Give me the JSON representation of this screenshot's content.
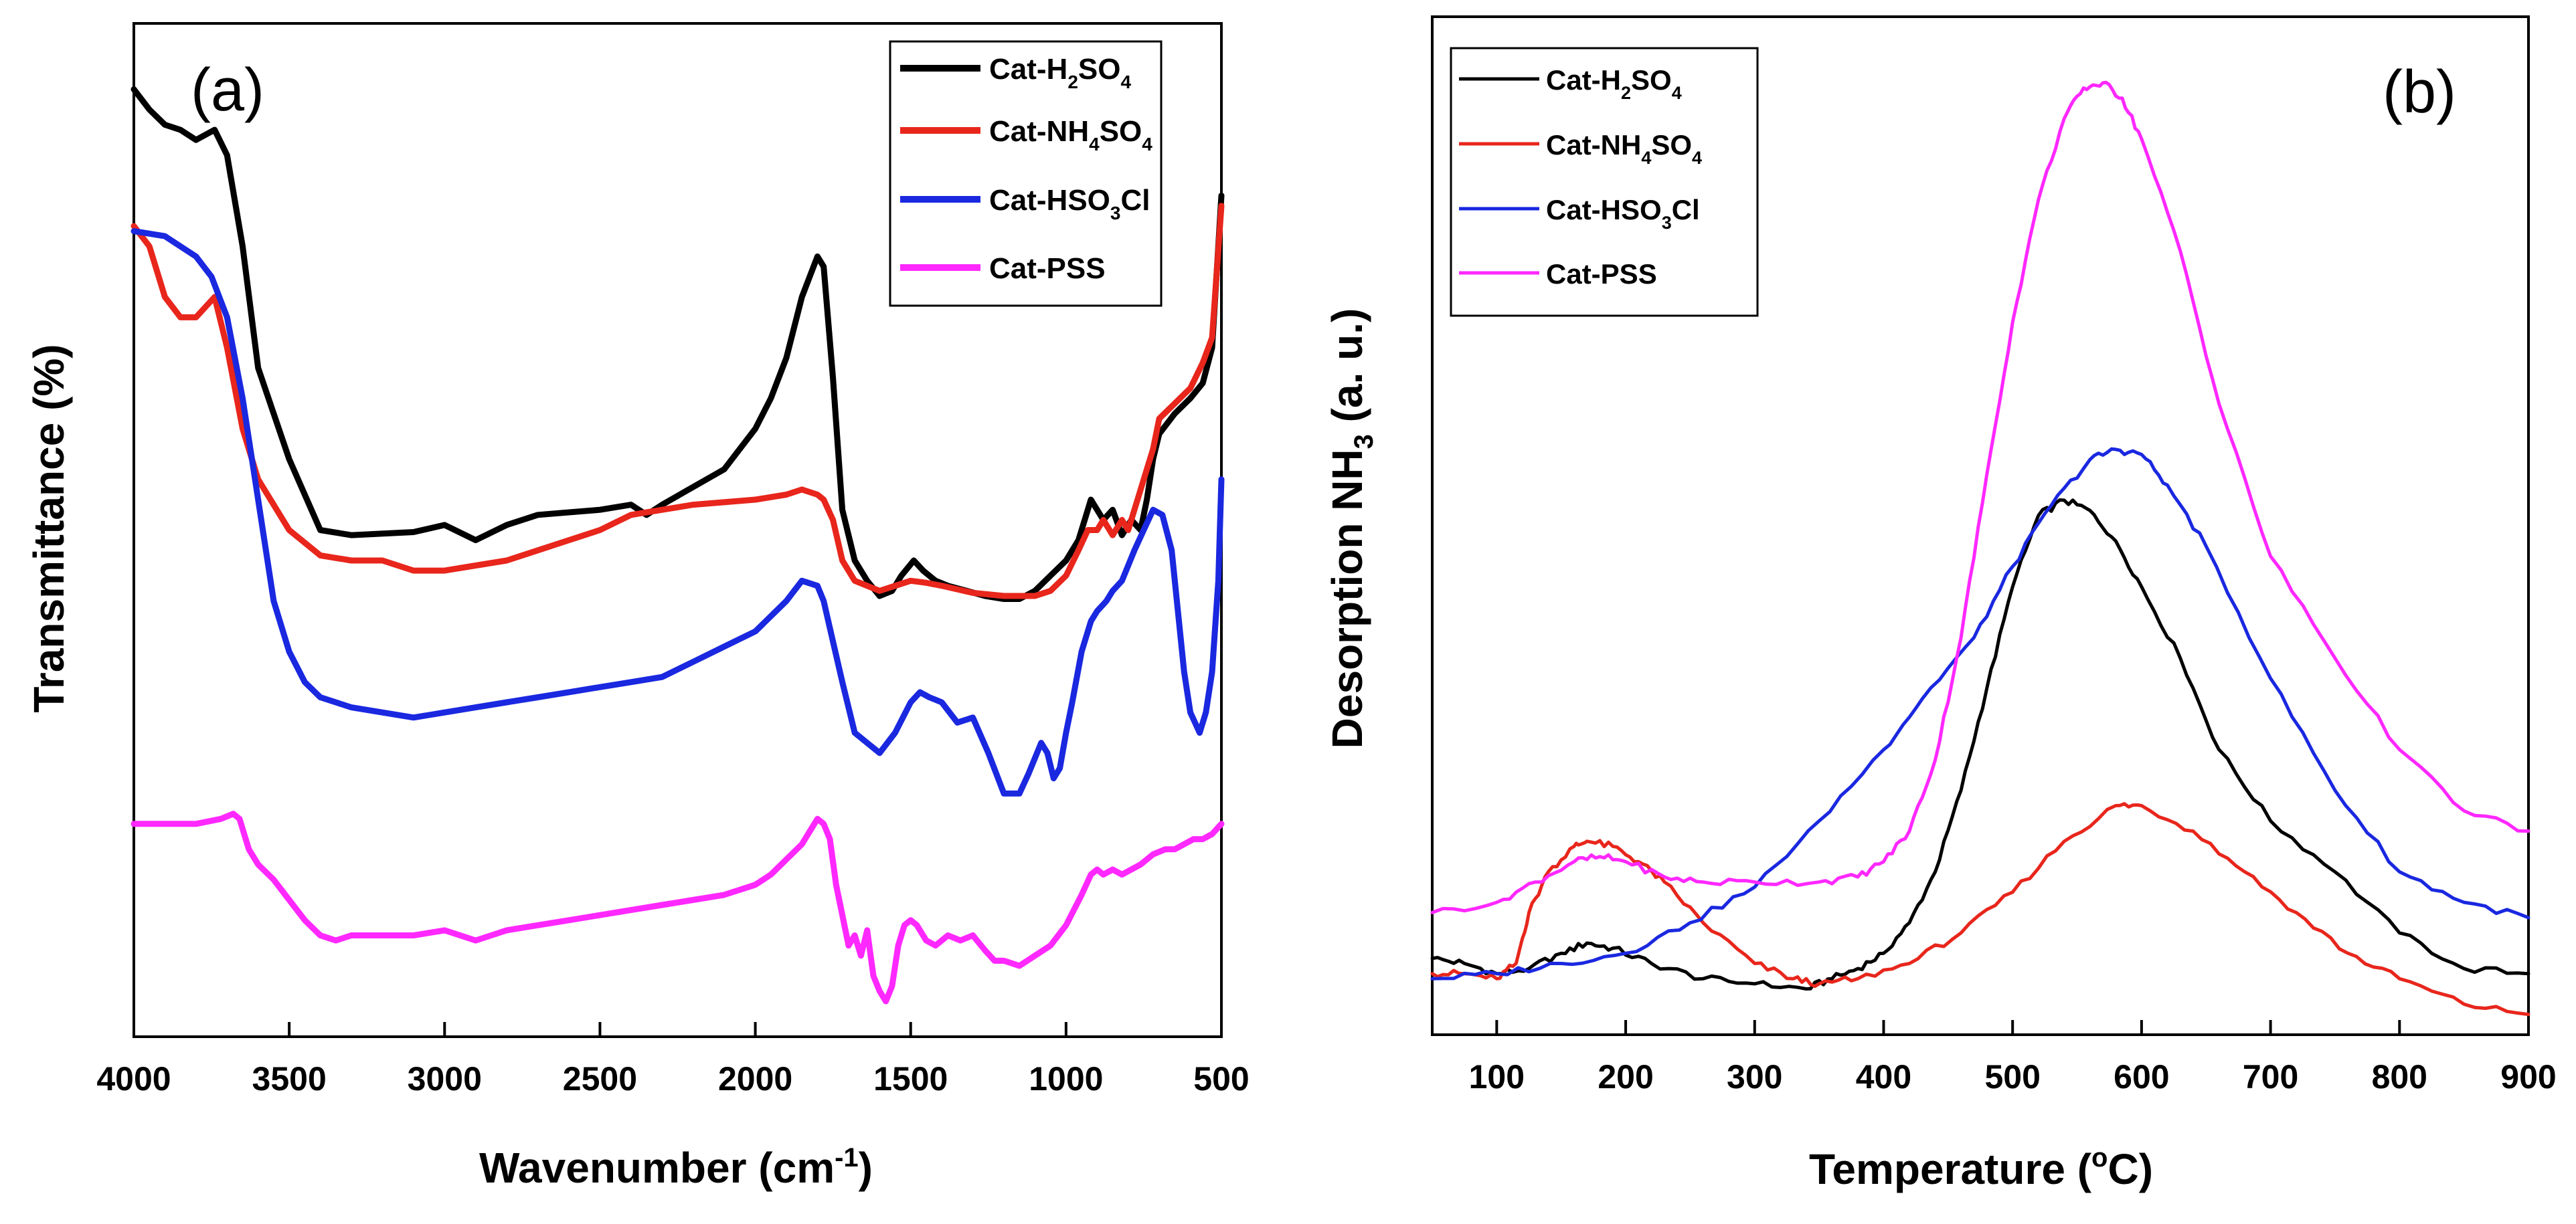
{
  "chart_data": [
    {
      "type": "line",
      "panel_label": "(a)",
      "xlabel": "Wavenumber (cm",
      "xlabel_sup": "-1",
      "xlabel_end": ")",
      "ylabel": "Transmittance (%)",
      "xlim": [
        4000,
        500
      ],
      "ylim": [
        0,
        100
      ],
      "xticks": [
        "4000",
        "3500",
        "3000",
        "2500",
        "2000",
        "1500",
        "1000",
        "500"
      ],
      "series": [
        {
          "name": "Cat-H2SO4",
          "label_parts": [
            "Cat-H",
            "2",
            "SO",
            "4"
          ],
          "color": "#000000",
          "x": [
            4000,
            3950,
            3900,
            3850,
            3800,
            3740,
            3700,
            3650,
            3600,
            3500,
            3400,
            3300,
            3100,
            3000,
            2900,
            2800,
            2700,
            2500,
            2400,
            2350,
            2300,
            2100,
            2000,
            1950,
            1900,
            1850,
            1800,
            1780,
            1750,
            1720,
            1680,
            1640,
            1600,
            1560,
            1530,
            1490,
            1460,
            1420,
            1380,
            1320,
            1260,
            1200,
            1150,
            1100,
            1050,
            1000,
            960,
            940,
            920,
            900,
            880,
            850,
            820,
            790,
            760,
            740,
            720,
            700,
            650,
            600,
            560,
            530,
            500
          ],
          "y": [
            93.5,
            91.5,
            90,
            89.5,
            88.5,
            89.5,
            87,
            78,
            66,
            57,
            50,
            49.5,
            49.8,
            50.5,
            49,
            50.5,
            51.5,
            52,
            52.5,
            51.5,
            52.5,
            56,
            60,
            63,
            67,
            73,
            77,
            76,
            65,
            52,
            47,
            45,
            43.5,
            44,
            45.5,
            47,
            46,
            45,
            44.5,
            44,
            43.5,
            43.2,
            43.2,
            44,
            45.5,
            47,
            49,
            51,
            53,
            52,
            51,
            52,
            49.5,
            51,
            50,
            53,
            57,
            59.5,
            61.5,
            63,
            64.5,
            68,
            83
          ]
        },
        {
          "name": "Cat-NH4SO4",
          "label_parts": [
            "Cat-NH",
            "4",
            "SO",
            "4"
          ],
          "color": "#e8261c",
          "x": [
            4000,
            3950,
            3900,
            3850,
            3800,
            3740,
            3700,
            3650,
            3600,
            3500,
            3400,
            3300,
            3200,
            3100,
            3000,
            2900,
            2800,
            2700,
            2600,
            2500,
            2400,
            2300,
            2200,
            2000,
            1900,
            1850,
            1800,
            1780,
            1750,
            1720,
            1680,
            1640,
            1600,
            1550,
            1500,
            1450,
            1400,
            1300,
            1200,
            1100,
            1050,
            1000,
            960,
            930,
            900,
            880,
            850,
            820,
            800,
            780,
            760,
            740,
            720,
            700,
            650,
            600,
            560,
            530,
            500
          ],
          "y": [
            80,
            78,
            73,
            71,
            71,
            73,
            68,
            60,
            55,
            50,
            47.5,
            47,
            47,
            46,
            46,
            46.5,
            47,
            48,
            49,
            50,
            51.5,
            52,
            52.5,
            53,
            53.5,
            54,
            53.5,
            53,
            51,
            47,
            45,
            44.5,
            44,
            44.5,
            45,
            44.8,
            44.5,
            43.8,
            43.5,
            43.5,
            44,
            45.5,
            48,
            50,
            50,
            51,
            49.5,
            51,
            50,
            52,
            54,
            56,
            58,
            61,
            62.5,
            64,
            66.5,
            69,
            82
          ]
        },
        {
          "name": "Cat-HSO3Cl",
          "label_parts": [
            "Cat-HSO",
            "3",
            "Cl"
          ],
          "color": "#1a28e0",
          "x": [
            4000,
            3900,
            3800,
            3750,
            3700,
            3650,
            3600,
            3550,
            3500,
            3450,
            3400,
            3300,
            3200,
            3100,
            3000,
            2900,
            2800,
            2700,
            2600,
            2500,
            2400,
            2300,
            2200,
            2100,
            2000,
            1900,
            1850,
            1800,
            1780,
            1750,
            1720,
            1680,
            1640,
            1600,
            1550,
            1500,
            1470,
            1440,
            1400,
            1350,
            1300,
            1250,
            1200,
            1150,
            1120,
            1080,
            1060,
            1040,
            1020,
            1000,
            980,
            950,
            920,
            900,
            870,
            850,
            820,
            780,
            750,
            720,
            690,
            660,
            640,
            620,
            600,
            570,
            550,
            530,
            510,
            500
          ],
          "y": [
            79.5,
            79,
            77,
            75,
            71,
            63,
            53,
            43,
            38,
            35,
            33.5,
            32.5,
            32,
            31.5,
            32,
            32.5,
            33,
            33.5,
            34,
            34.5,
            35,
            35.5,
            37,
            38.5,
            40,
            43,
            45,
            44.5,
            43,
            39,
            35,
            30,
            29,
            28,
            30,
            33,
            34,
            33.5,
            33,
            31,
            31.5,
            28,
            24,
            24,
            26,
            29,
            28,
            25.5,
            26.5,
            30,
            33,
            38,
            41,
            42,
            43,
            44,
            45,
            48,
            50,
            52,
            51.5,
            48,
            42,
            36,
            32,
            30,
            32,
            36,
            45,
            55
          ]
        },
        {
          "name": "Cat-PSS",
          "label_parts": [
            "Cat-PSS"
          ],
          "color": "#ff28ff",
          "x": [
            4000,
            3900,
            3800,
            3720,
            3680,
            3660,
            3630,
            3600,
            3550,
            3500,
            3450,
            3400,
            3350,
            3300,
            3200,
            3100,
            3000,
            2950,
            2900,
            2850,
            2800,
            2700,
            2600,
            2500,
            2400,
            2300,
            2200,
            2100,
            2000,
            1950,
            1900,
            1850,
            1820,
            1800,
            1780,
            1760,
            1740,
            1720,
            1700,
            1680,
            1660,
            1640,
            1620,
            1600,
            1580,
            1560,
            1540,
            1520,
            1500,
            1480,
            1450,
            1420,
            1380,
            1340,
            1300,
            1260,
            1230,
            1200,
            1150,
            1100,
            1050,
            1000,
            950,
            920,
            900,
            880,
            850,
            820,
            790,
            760,
            720,
            680,
            650,
            620,
            590,
            560,
            530,
            500
          ],
          "y": [
            21,
            21,
            21,
            21.5,
            22,
            21.5,
            18.5,
            17,
            15.5,
            13.5,
            11.5,
            10,
            9.5,
            10,
            10,
            10,
            10.5,
            10,
            9.5,
            10,
            10.5,
            11,
            11.5,
            12,
            12.5,
            13,
            13.5,
            14,
            15,
            16,
            17.5,
            19,
            20.5,
            21.5,
            21,
            19.5,
            15,
            12,
            9,
            10,
            8,
            10.5,
            6,
            4.5,
            3.5,
            5,
            9,
            11,
            11.5,
            11,
            9.5,
            9,
            10,
            9.5,
            10,
            8.5,
            7.5,
            7.5,
            7,
            8,
            9,
            11,
            14,
            16,
            16.5,
            16,
            16.5,
            16,
            16.5,
            17,
            18,
            18.5,
            18.5,
            19,
            19.5,
            19.5,
            20,
            21
          ]
        }
      ]
    },
    {
      "type": "line",
      "panel_label": "(b)",
      "xlabel": "Temperature (",
      "xlabel_sup": "o",
      "xlabel_end": "C)",
      "ylabel": "Desorption NH",
      "ylabel_sub": "3",
      "ylabel_end": " (a. u.)",
      "xlim": [
        50,
        900
      ],
      "ylim": [
        0,
        100
      ],
      "xticks": [
        "100",
        "200",
        "300",
        "400",
        "500",
        "600",
        "700",
        "800",
        "900"
      ],
      "series": [
        {
          "name": "Cat-H2SO4",
          "label_parts": [
            "Cat-H",
            "2",
            "SO",
            "4"
          ],
          "color": "#000000",
          "x": [
            50,
            75,
            100,
            125,
            150,
            170,
            190,
            220,
            260,
            300,
            340,
            360,
            380,
            400,
            420,
            440,
            460,
            480,
            500,
            520,
            540,
            560,
            580,
            600,
            630,
            660,
            700,
            750,
            800,
            850,
            900
          ],
          "y": [
            7.5,
            7,
            6,
            6.5,
            8,
            9,
            8.5,
            7,
            5.5,
            5,
            4.5,
            5.5,
            6.5,
            8,
            11,
            16,
            24,
            34,
            44,
            51,
            52.5,
            51.5,
            48.5,
            44,
            37,
            28,
            21,
            16,
            10,
            6.5,
            6
          ]
        },
        {
          "name": "Cat-NH4SO4",
          "label_parts": [
            "Cat-NH",
            "4",
            "SO",
            "4"
          ],
          "color": "#e8261c",
          "x": [
            50,
            75,
            100,
            115,
            125,
            140,
            160,
            170,
            190,
            210,
            230,
            260,
            300,
            330,
            350,
            380,
            420,
            460,
            500,
            540,
            580,
            600,
            640,
            680,
            720,
            760,
            800,
            850,
            900
          ],
          "y": [
            6,
            6,
            5.5,
            7,
            12,
            16,
            18.5,
            19,
            18.5,
            17,
            15,
            11,
            7,
            5.5,
            5,
            5.5,
            7,
            10,
            14,
            19,
            22.5,
            22.5,
            20,
            16,
            12,
            8,
            5.5,
            3,
            2
          ]
        },
        {
          "name": "Cat-HSO3Cl",
          "label_parts": [
            "Cat-HSO",
            "3",
            "Cl"
          ],
          "color": "#1a28e0",
          "x": [
            50,
            100,
            150,
            200,
            250,
            300,
            350,
            400,
            430,
            470,
            500,
            530,
            560,
            580,
            600,
            620,
            650,
            700,
            750,
            800,
            850,
            900
          ],
          "y": [
            5.5,
            6,
            7,
            8,
            11,
            14.5,
            21,
            28,
            33,
            39,
            46,
            52,
            56.5,
            57.5,
            57,
            54,
            48,
            35,
            24,
            16,
            13,
            11.5
          ]
        },
        {
          "name": "Cat-PSS",
          "label_parts": [
            "Cat-PSS"
          ],
          "color": "#ff28ff",
          "x": [
            50,
            100,
            130,
            160,
            180,
            200,
            230,
            260,
            300,
            350,
            380,
            400,
            420,
            440,
            460,
            480,
            500,
            520,
            540,
            555,
            570,
            585,
            600,
            630,
            660,
            700,
            750,
            800,
            850,
            900
          ],
          "y": [
            12,
            13,
            15,
            17,
            17.5,
            17,
            15.5,
            15,
            15,
            15,
            15.5,
            17,
            20,
            27,
            39,
            55,
            70,
            82,
            90,
            93,
            93.5,
            92,
            88,
            77,
            62,
            47,
            37,
            28,
            22,
            20
          ]
        }
      ]
    }
  ]
}
